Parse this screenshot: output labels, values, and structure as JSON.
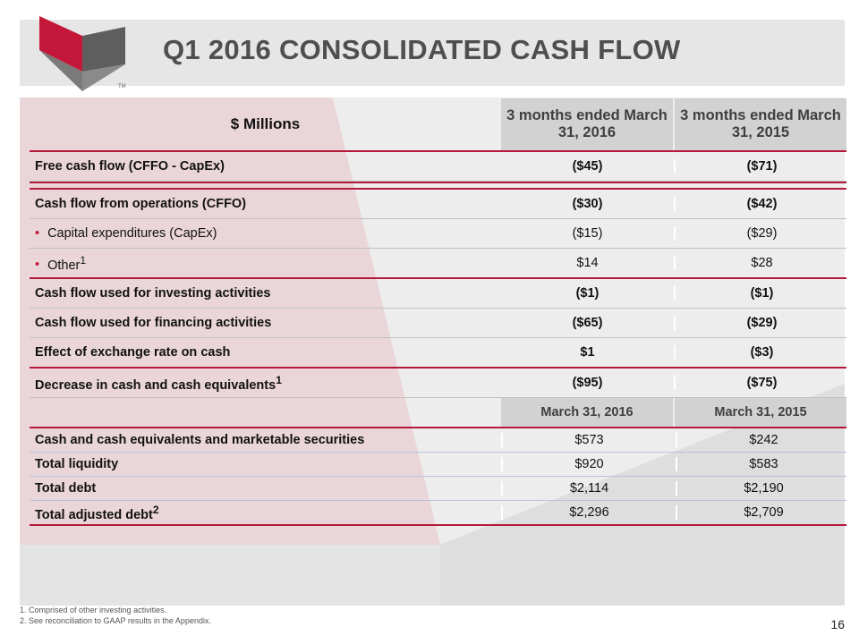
{
  "title": "Q1 2016 CONSOLIDATED CASH FLOW",
  "logo_mark": "TM",
  "colors": {
    "accent": "#b3193a",
    "header_gray": "#d2d2d2",
    "title_gray": "#4f4f4f"
  },
  "table": {
    "header": {
      "label": "$ Millions",
      "col1": "3 months ended March 31, 2016",
      "col2": "3 months ended March 31, 2015"
    },
    "rows": [
      {
        "label": "Free cash flow (CFFO - CapEx)",
        "v1": "($45)",
        "v2": "($71)"
      },
      {
        "label": "Cash flow from operations (CFFO)",
        "v1": "($30)",
        "v2": "($42)"
      },
      {
        "label": "Capital expenditures (CapEx)",
        "v1": "($15)",
        "v2": "($29)"
      },
      {
        "label": "Other",
        "sup": "1",
        "v1": "$14",
        "v2": "$28"
      },
      {
        "label": "Cash flow used for investing activities",
        "v1": "($1)",
        "v2": "($1)"
      },
      {
        "label": "Cash flow used for financing activities",
        "v1": "($65)",
        "v2": "($29)"
      },
      {
        "label": "Effect of exchange rate on cash",
        "v1": "$1",
        "v2": "($3)"
      },
      {
        "label": "Decrease in cash and cash equivalents",
        "sup": "1",
        "v1": "($95)",
        "v2": "($75)"
      }
    ],
    "date_header": {
      "col1": "March 31, 2016",
      "col2": "March 31, 2015"
    },
    "balance_rows": [
      {
        "label": "Cash and cash equivalents and marketable securities",
        "v1": "$573",
        "v2": "$242"
      },
      {
        "label": "Total liquidity",
        "v1": "$920",
        "v2": "$583"
      },
      {
        "label": "Total debt",
        "v1": "$2,114",
        "v2": "$2,190"
      },
      {
        "label": "Total adjusted debt",
        "sup": "2",
        "v1": "$2,296",
        "v2": "$2,709"
      }
    ]
  },
  "footnotes": [
    "1. Comprised of other investing activities.",
    "2. See reconciliation to GAAP results in the Appendix."
  ],
  "page_number": "16"
}
